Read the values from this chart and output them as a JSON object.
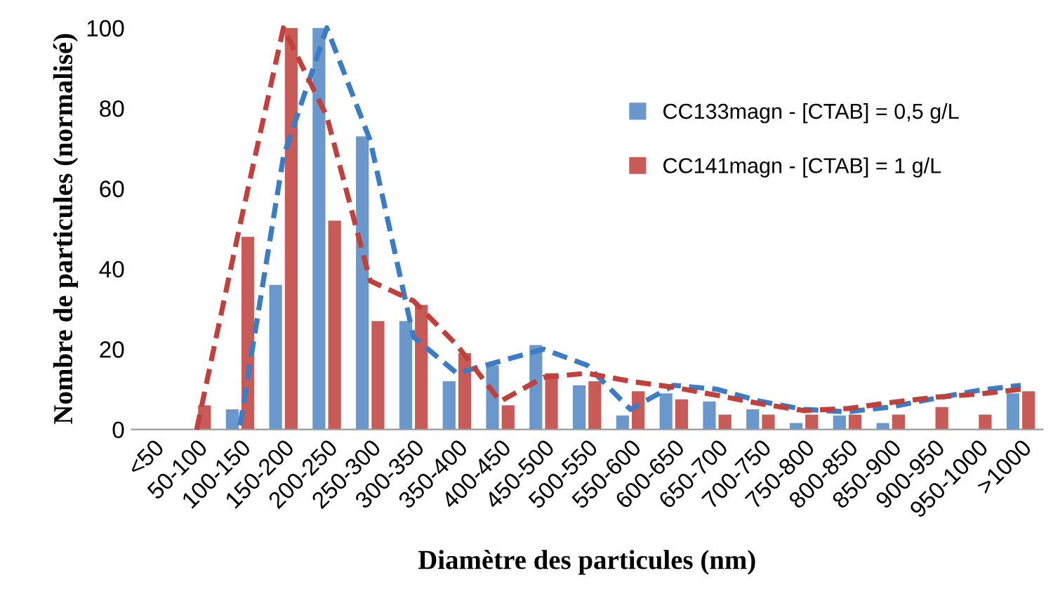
{
  "chart_data": {
    "type": "bar",
    "xlabel": "Diamètre des particules (nm)",
    "ylabel": "Nombre de particules (normalisé)",
    "categories": [
      "<50",
      "50-100",
      "100-150",
      "150-200",
      "200-250",
      "250-300",
      "300-350",
      "350-400",
      "400-450",
      "450-500",
      "500-550",
      "550-600",
      "600-650",
      "650-700",
      "700-750",
      "750-800",
      "800-850",
      "850-900",
      "900-950",
      "950-1000",
      ">1000"
    ],
    "series": [
      {
        "name": "CC133magn - [CTAB] = 0,5 g/L",
        "color": "#6a98cc",
        "values": [
          0,
          0,
          5,
          36,
          100,
          73,
          27,
          12,
          16,
          21,
          11,
          3.5,
          9,
          7,
          5,
          1.6,
          3.5,
          1.6,
          0,
          0,
          9
        ]
      },
      {
        "name": "CC141magn - [CTAB] = 1 g/L",
        "color": "#c85a58",
        "values": [
          0,
          6,
          48,
          100,
          52,
          27,
          31,
          19,
          6,
          14,
          12,
          9.5,
          7.5,
          3.7,
          3.7,
          3.7,
          3.7,
          3.7,
          5.6,
          3.7,
          9.5
        ]
      },
      {
        "type": "line",
        "color": "#3c7cc4",
        "line_style": "dashed",
        "values": [
          null,
          null,
          1,
          68,
          100,
          72,
          23,
          14,
          17,
          20,
          16,
          5,
          11,
          10,
          7,
          5,
          4.4,
          5.6,
          7.7,
          9.7,
          11
        ]
      },
      {
        "type": "line",
        "color": "#c0403c",
        "line_style": "dashed",
        "values": [
          null,
          0,
          51,
          100,
          78,
          37,
          32,
          21,
          7,
          13,
          14,
          12,
          10.5,
          8.5,
          6.4,
          4.7,
          5.2,
          6.7,
          8,
          8.8,
          10
        ]
      }
    ],
    "ylim": [
      0,
      100
    ],
    "yticks": [
      0,
      20,
      40,
      60,
      80,
      100
    ],
    "grid": false,
    "legend": "right"
  }
}
